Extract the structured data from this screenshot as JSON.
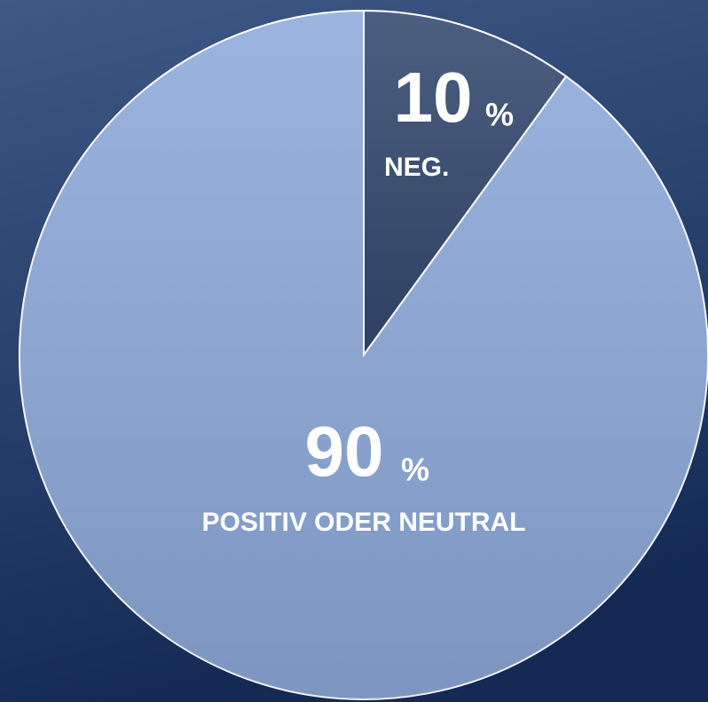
{
  "chart_data": {
    "type": "pie",
    "categories": [
      "NEG.",
      "POSITIV ODER NEUTRAL"
    ],
    "values": [
      10,
      90
    ],
    "unit": "%",
    "colors": [
      "#34496f",
      "#8eaadb"
    ]
  }
}
